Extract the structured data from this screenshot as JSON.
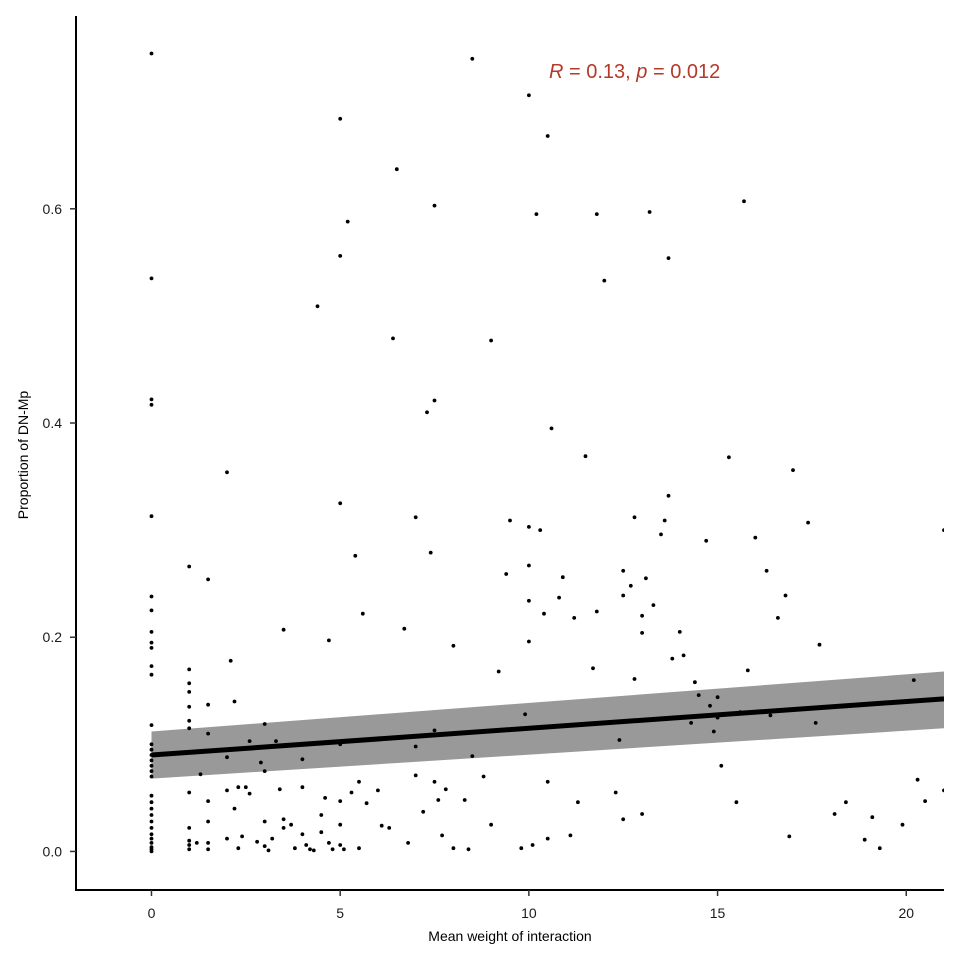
{
  "chart_data": {
    "type": "scatter",
    "title": "",
    "xlabel": "Mean weight of interaction",
    "ylabel": "Proportion of DN-Mp",
    "xlim": [
      -2,
      21
    ],
    "ylim": [
      -0.036,
      0.78
    ],
    "xticks": [
      0,
      5,
      10,
      15,
      20
    ],
    "yticks": [
      0.0,
      0.2,
      0.4,
      0.6
    ],
    "ytick_labels": [
      "0.0",
      "0.2",
      "0.4",
      "0.6"
    ],
    "grid": false,
    "legend": "none",
    "annotation": {
      "r_symbol": "R",
      "r_value": " = 0.13, ",
      "p_symbol": "p",
      "p_value": " = 0.012",
      "color": "#b5392a"
    },
    "regression": {
      "intercept": 0.09,
      "slope": 0.0025,
      "x_range": [
        0,
        21
      ],
      "ci_low": [
        0.068,
        0.115
      ],
      "ci_high": [
        0.112,
        0.168
      ],
      "line_color": "#000000",
      "band_color": "#999999"
    },
    "points": [
      [
        0,
        0.745
      ],
      [
        0,
        0.535
      ],
      [
        0,
        0.422
      ],
      [
        0,
        0.417
      ],
      [
        0,
        0.313
      ],
      [
        0,
        0.238
      ],
      [
        0,
        0.225
      ],
      [
        0,
        0.205
      ],
      [
        0,
        0.195
      ],
      [
        0,
        0.19
      ],
      [
        0,
        0.173
      ],
      [
        0,
        0.165
      ],
      [
        0,
        0.118
      ],
      [
        0,
        0.1
      ],
      [
        0,
        0.095
      ],
      [
        0,
        0.09
      ],
      [
        0,
        0.085
      ],
      [
        0,
        0.08
      ],
      [
        0,
        0.075
      ],
      [
        0,
        0.07
      ],
      [
        0,
        0.052
      ],
      [
        0,
        0.046
      ],
      [
        0,
        0.04
      ],
      [
        0,
        0.034
      ],
      [
        0,
        0.028
      ],
      [
        0,
        0.022
      ],
      [
        0,
        0.016
      ],
      [
        0,
        0.012
      ],
      [
        0,
        0.008
      ],
      [
        0,
        0.004
      ],
      [
        0,
        0.002
      ],
      [
        0,
        0.0
      ],
      [
        1,
        0.266
      ],
      [
        1,
        0.17
      ],
      [
        1,
        0.157
      ],
      [
        1,
        0.149
      ],
      [
        1,
        0.135
      ],
      [
        1,
        0.122
      ],
      [
        1,
        0.115
      ],
      [
        1,
        0.055
      ],
      [
        1,
        0.022
      ],
      [
        1,
        0.01
      ],
      [
        1,
        0.006
      ],
      [
        1,
        0.002
      ],
      [
        1.2,
        0.008
      ],
      [
        1.3,
        0.072
      ],
      [
        1.5,
        0.254
      ],
      [
        1.5,
        0.137
      ],
      [
        1.5,
        0.11
      ],
      [
        1.5,
        0.047
      ],
      [
        1.5,
        0.028
      ],
      [
        1.5,
        0.008
      ],
      [
        1.5,
        0.002
      ],
      [
        2,
        0.354
      ],
      [
        2,
        0.088
      ],
      [
        2,
        0.057
      ],
      [
        2,
        0.012
      ],
      [
        2.1,
        0.178
      ],
      [
        2.2,
        0.14
      ],
      [
        2.2,
        0.04
      ],
      [
        2.3,
        0.06
      ],
      [
        2.3,
        0.003
      ],
      [
        2.4,
        0.014
      ],
      [
        2.5,
        0.06
      ],
      [
        2.6,
        0.054
      ],
      [
        2.6,
        0.103
      ],
      [
        2.8,
        0.009
      ],
      [
        2.9,
        0.083
      ],
      [
        3,
        0.119
      ],
      [
        3,
        0.075
      ],
      [
        3,
        0.028
      ],
      [
        3,
        0.005
      ],
      [
        3.1,
        0.001
      ],
      [
        3.2,
        0.012
      ],
      [
        3.3,
        0.103
      ],
      [
        3.4,
        0.058
      ],
      [
        3.5,
        0.207
      ],
      [
        3.5,
        0.03
      ],
      [
        3.5,
        0.022
      ],
      [
        3.7,
        0.025
      ],
      [
        3.8,
        0.003
      ],
      [
        4,
        0.086
      ],
      [
        4,
        0.06
      ],
      [
        4,
        0.016
      ],
      [
        4.1,
        0.006
      ],
      [
        4.2,
        0.002
      ],
      [
        4.3,
        0.001
      ],
      [
        4.4,
        0.509
      ],
      [
        4.5,
        0.034
      ],
      [
        4.5,
        0.018
      ],
      [
        4.6,
        0.05
      ],
      [
        4.7,
        0.197
      ],
      [
        4.7,
        0.008
      ],
      [
        4.8,
        0.002
      ],
      [
        5,
        0.684
      ],
      [
        5,
        0.556
      ],
      [
        5,
        0.325
      ],
      [
        5,
        0.1
      ],
      [
        5,
        0.047
      ],
      [
        5,
        0.025
      ],
      [
        5,
        0.006
      ],
      [
        5.1,
        0.002
      ],
      [
        5.2,
        0.588
      ],
      [
        5.3,
        0.055
      ],
      [
        5.4,
        0.276
      ],
      [
        5.5,
        0.065
      ],
      [
        5.5,
        0.003
      ],
      [
        5.6,
        0.222
      ],
      [
        5.7,
        0.045
      ],
      [
        6,
        0.057
      ],
      [
        6.1,
        0.024
      ],
      [
        6.3,
        0.022
      ],
      [
        6.4,
        0.479
      ],
      [
        6.5,
        0.637
      ],
      [
        6.7,
        0.208
      ],
      [
        6.8,
        0.008
      ],
      [
        7,
        0.312
      ],
      [
        7,
        0.098
      ],
      [
        7,
        0.071
      ],
      [
        7.2,
        0.037
      ],
      [
        7.3,
        0.41
      ],
      [
        7.4,
        0.279
      ],
      [
        7.5,
        0.421
      ],
      [
        7.5,
        0.603
      ],
      [
        7.5,
        0.113
      ],
      [
        7.5,
        0.065
      ],
      [
        7.6,
        0.048
      ],
      [
        7.7,
        0.015
      ],
      [
        7.8,
        0.058
      ],
      [
        8,
        0.192
      ],
      [
        8,
        0.003
      ],
      [
        8.3,
        0.048
      ],
      [
        8.4,
        0.002
      ],
      [
        8.5,
        0.74
      ],
      [
        8.5,
        0.089
      ],
      [
        8.8,
        0.07
      ],
      [
        9,
        0.477
      ],
      [
        9,
        0.025
      ],
      [
        9.2,
        0.168
      ],
      [
        9.4,
        0.259
      ],
      [
        9.5,
        0.309
      ],
      [
        9.8,
        0.003
      ],
      [
        9.9,
        0.128
      ],
      [
        10,
        0.706
      ],
      [
        10,
        0.303
      ],
      [
        10,
        0.267
      ],
      [
        10,
        0.234
      ],
      [
        10,
        0.196
      ],
      [
        10.1,
        0.006
      ],
      [
        10.2,
        0.595
      ],
      [
        10.3,
        0.3
      ],
      [
        10.4,
        0.222
      ],
      [
        10.5,
        0.668
      ],
      [
        10.5,
        0.065
      ],
      [
        10.5,
        0.012
      ],
      [
        10.6,
        0.395
      ],
      [
        10.8,
        0.237
      ],
      [
        10.9,
        0.256
      ],
      [
        11.1,
        0.015
      ],
      [
        11.2,
        0.218
      ],
      [
        11.3,
        0.046
      ],
      [
        11.5,
        0.369
      ],
      [
        11.7,
        0.171
      ],
      [
        11.8,
        0.595
      ],
      [
        11.8,
        0.224
      ],
      [
        12,
        0.533
      ],
      [
        12.3,
        0.055
      ],
      [
        12.4,
        0.104
      ],
      [
        12.5,
        0.239
      ],
      [
        12.5,
        0.262
      ],
      [
        12.5,
        0.03
      ],
      [
        12.7,
        0.248
      ],
      [
        12.8,
        0.161
      ],
      [
        12.8,
        0.312
      ],
      [
        13,
        0.22
      ],
      [
        13,
        0.204
      ],
      [
        13,
        0.035
      ],
      [
        13.1,
        0.255
      ],
      [
        13.2,
        0.597
      ],
      [
        13.3,
        0.23
      ],
      [
        13.5,
        0.296
      ],
      [
        13.6,
        0.309
      ],
      [
        13.7,
        0.332
      ],
      [
        13.7,
        0.554
      ],
      [
        13.8,
        0.18
      ],
      [
        14,
        0.205
      ],
      [
        14.1,
        0.183
      ],
      [
        14.3,
        0.12
      ],
      [
        14.4,
        0.158
      ],
      [
        14.5,
        0.146
      ],
      [
        14.7,
        0.29
      ],
      [
        14.8,
        0.136
      ],
      [
        14.9,
        0.112
      ],
      [
        15,
        0.125
      ],
      [
        15,
        0.144
      ],
      [
        15.1,
        0.08
      ],
      [
        15.3,
        0.368
      ],
      [
        15.5,
        0.046
      ],
      [
        15.6,
        0.13
      ],
      [
        15.7,
        0.607
      ],
      [
        15.8,
        0.169
      ],
      [
        16,
        0.293
      ],
      [
        16.3,
        0.262
      ],
      [
        16.4,
        0.127
      ],
      [
        16.6,
        0.218
      ],
      [
        16.8,
        0.239
      ],
      [
        16.9,
        0.014
      ],
      [
        17,
        0.356
      ],
      [
        17.4,
        0.307
      ],
      [
        17.6,
        0.12
      ],
      [
        17.7,
        0.193
      ],
      [
        18.1,
        0.035
      ],
      [
        18.4,
        0.046
      ],
      [
        18.9,
        0.011
      ],
      [
        19.1,
        0.032
      ],
      [
        19.3,
        0.003
      ],
      [
        19.9,
        0.025
      ],
      [
        20.2,
        0.16
      ],
      [
        20.3,
        0.067
      ],
      [
        20.5,
        0.047
      ],
      [
        21,
        0.3
      ],
      [
        21,
        0.057
      ]
    ]
  }
}
